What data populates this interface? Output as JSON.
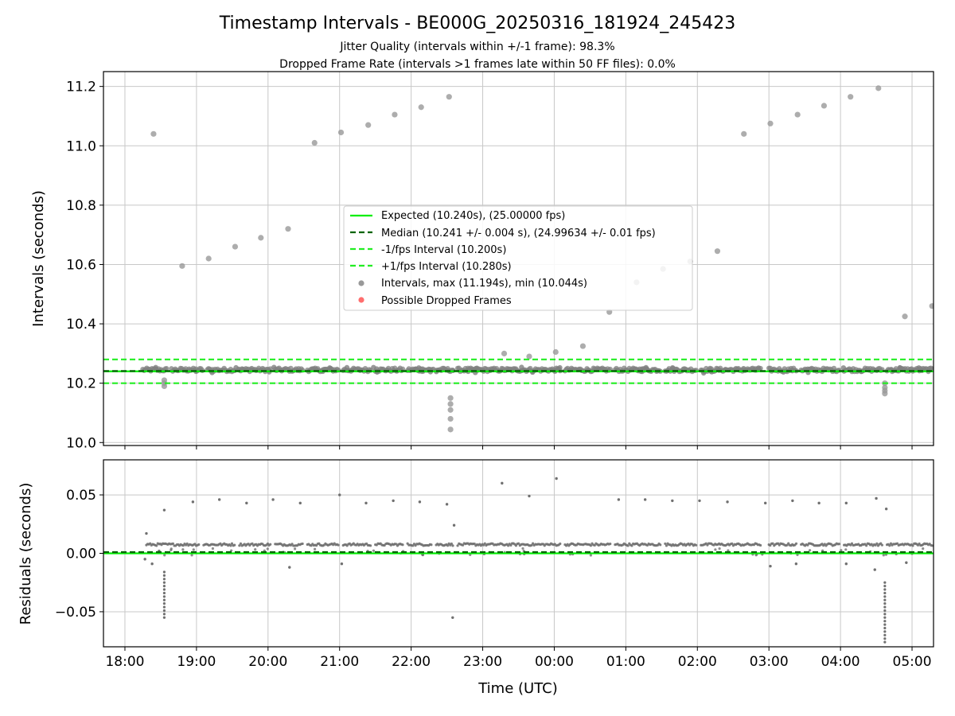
{
  "chart_data": {
    "type": "scatter",
    "title": "Timestamp Intervals - BE000G_20250316_181924_245423",
    "subtitle_lines": [
      "Jitter Quality (intervals within +/-1 frame): 98.3%",
      "Dropped Frame Rate (intervals >1 frames late within 50 FF files): 0.0%"
    ],
    "xlabel": "Time (UTC)",
    "x_unit": "hours since 18:00 UTC",
    "xlim": [
      -0.3,
      11.3
    ],
    "x_ticks": [
      {
        "value": 0,
        "label": "18:00"
      },
      {
        "value": 1,
        "label": "19:00"
      },
      {
        "value": 2,
        "label": "20:00"
      },
      {
        "value": 3,
        "label": "21:00"
      },
      {
        "value": 4,
        "label": "22:00"
      },
      {
        "value": 5,
        "label": "23:00"
      },
      {
        "value": 6,
        "label": "00:00"
      },
      {
        "value": 7,
        "label": "01:00"
      },
      {
        "value": 8,
        "label": "02:00"
      },
      {
        "value": 9,
        "label": "03:00"
      },
      {
        "value": 10,
        "label": "04:00"
      },
      {
        "value": 11,
        "label": "05:00"
      }
    ],
    "panels": [
      {
        "name": "intervals",
        "ylabel": "Intervals (seconds)",
        "ylim": [
          9.99,
          11.25
        ],
        "y_ticks": [
          {
            "value": 10.0,
            "label": "10.0"
          },
          {
            "value": 10.2,
            "label": "10.2"
          },
          {
            "value": 10.4,
            "label": "10.4"
          },
          {
            "value": 10.6,
            "label": "10.6"
          },
          {
            "value": 10.8,
            "label": "10.8"
          },
          {
            "value": 11.0,
            "label": "11.0"
          },
          {
            "value": 11.2,
            "label": "11.2"
          }
        ],
        "grid": true,
        "legend_position": "center",
        "reference_lines": [
          {
            "label": "Expected (10.240s), (25.00000 fps)",
            "y": 10.24,
            "color": "#00ee00",
            "style": "solid"
          },
          {
            "label": "Median (10.241 +/- 0.004 s), (24.99634 +/- 0.01 fps)",
            "y": 10.241,
            "color": "#006400",
            "style": "dashed"
          },
          {
            "label": "-1/fps Interval (10.200s)",
            "y": 10.2,
            "color": "#22ee22",
            "style": "dashed"
          },
          {
            "label": "+1/fps Interval (10.280s)",
            "y": 10.28,
            "color": "#22ee22",
            "style": "dashed"
          }
        ],
        "point_series": [
          {
            "label": "Intervals, max (11.194s), min (10.044s)",
            "color": "#999999"
          },
          {
            "label": "Possible Dropped Frames",
            "color": "#ff5555"
          }
        ],
        "outliers": [
          {
            "x": 0.4,
            "y": 11.04
          },
          {
            "x": 0.8,
            "y": 10.595
          },
          {
            "x": 1.17,
            "y": 10.62
          },
          {
            "x": 1.54,
            "y": 10.66
          },
          {
            "x": 1.9,
            "y": 10.69
          },
          {
            "x": 2.28,
            "y": 10.72
          },
          {
            "x": 2.65,
            "y": 11.01
          },
          {
            "x": 3.02,
            "y": 11.045
          },
          {
            "x": 3.4,
            "y": 11.07
          },
          {
            "x": 3.77,
            "y": 11.105
          },
          {
            "x": 4.14,
            "y": 11.13
          },
          {
            "x": 4.53,
            "y": 11.165
          },
          {
            "x": 4.55,
            "y": 10.15
          },
          {
            "x": 4.55,
            "y": 10.13
          },
          {
            "x": 4.55,
            "y": 10.11
          },
          {
            "x": 4.55,
            "y": 10.08
          },
          {
            "x": 4.55,
            "y": 10.044
          },
          {
            "x": 5.3,
            "y": 10.3
          },
          {
            "x": 5.65,
            "y": 10.29
          },
          {
            "x": 6.02,
            "y": 10.305
          },
          {
            "x": 6.4,
            "y": 10.325
          },
          {
            "x": 6.77,
            "y": 10.44
          },
          {
            "x": 7.15,
            "y": 10.54
          },
          {
            "x": 7.52,
            "y": 10.585
          },
          {
            "x": 7.9,
            "y": 10.61
          },
          {
            "x": 8.28,
            "y": 10.645
          },
          {
            "x": 8.65,
            "y": 11.04
          },
          {
            "x": 9.02,
            "y": 11.075
          },
          {
            "x": 9.4,
            "y": 11.105
          },
          {
            "x": 9.77,
            "y": 11.135
          },
          {
            "x": 10.14,
            "y": 11.165
          },
          {
            "x": 10.53,
            "y": 11.194
          },
          {
            "x": 10.9,
            "y": 10.425
          },
          {
            "x": 11.28,
            "y": 10.46
          },
          {
            "x": 0.55,
            "y": 10.19
          },
          {
            "x": 0.55,
            "y": 10.2
          },
          {
            "x": 0.55,
            "y": 10.21
          },
          {
            "x": 10.62,
            "y": 10.165
          },
          {
            "x": 10.62,
            "y": 10.175
          },
          {
            "x": 10.62,
            "y": 10.185
          },
          {
            "x": 10.62,
            "y": 10.2
          }
        ]
      },
      {
        "name": "residuals",
        "ylabel": "Residuals (seconds)",
        "ylim": [
          -0.08,
          0.08
        ],
        "y_ticks": [
          {
            "value": -0.05,
            "label": "−0.05"
          },
          {
            "value": 0.0,
            "label": "0.00"
          },
          {
            "value": 0.05,
            "label": "0.05"
          }
        ],
        "grid": true,
        "reference_lines": [
          {
            "y": 0.0,
            "color": "#00ee00",
            "style": "solid"
          },
          {
            "y": 0.001,
            "color": "#006400",
            "style": "dashed"
          }
        ],
        "outliers": [
          {
            "x": 0.3,
            "y": 0.017
          },
          {
            "x": 0.55,
            "y": 0.037
          },
          {
            "x": 0.95,
            "y": 0.044
          },
          {
            "x": 1.32,
            "y": 0.046
          },
          {
            "x": 1.7,
            "y": 0.043
          },
          {
            "x": 2.07,
            "y": 0.046
          },
          {
            "x": 2.45,
            "y": 0.043
          },
          {
            "x": 3.0,
            "y": 0.05
          },
          {
            "x": 3.37,
            "y": 0.043
          },
          {
            "x": 3.75,
            "y": 0.045
          },
          {
            "x": 4.12,
            "y": 0.044
          },
          {
            "x": 4.5,
            "y": 0.042
          },
          {
            "x": 4.6,
            "y": 0.024
          },
          {
            "x": 4.58,
            "y": -0.055
          },
          {
            "x": 5.27,
            "y": 0.06
          },
          {
            "x": 5.65,
            "y": 0.049
          },
          {
            "x": 6.03,
            "y": 0.064
          },
          {
            "x": 6.9,
            "y": 0.046
          },
          {
            "x": 7.27,
            "y": 0.046
          },
          {
            "x": 7.65,
            "y": 0.045
          },
          {
            "x": 8.03,
            "y": 0.045
          },
          {
            "x": 8.42,
            "y": 0.044
          },
          {
            "x": 8.95,
            "y": 0.043
          },
          {
            "x": 9.33,
            "y": 0.045
          },
          {
            "x": 9.7,
            "y": 0.043
          },
          {
            "x": 10.08,
            "y": 0.043
          },
          {
            "x": 10.5,
            "y": 0.047
          },
          {
            "x": 10.64,
            "y": 0.038
          },
          {
            "x": 0.28,
            "y": -0.005
          },
          {
            "x": 0.38,
            "y": -0.009
          },
          {
            "x": 2.3,
            "y": -0.012
          },
          {
            "x": 3.03,
            "y": -0.009
          },
          {
            "x": 9.02,
            "y": -0.011
          },
          {
            "x": 9.38,
            "y": -0.009
          },
          {
            "x": 10.08,
            "y": -0.009
          },
          {
            "x": 10.48,
            "y": -0.014
          },
          {
            "x": 10.92,
            "y": -0.008
          }
        ]
      }
    ]
  }
}
